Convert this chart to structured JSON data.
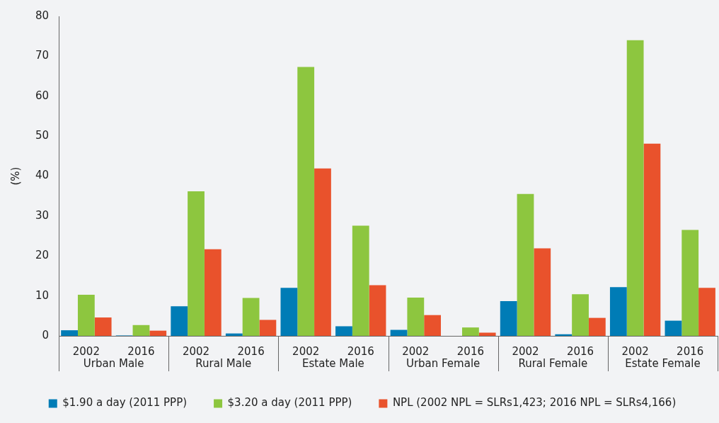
{
  "chart_data": {
    "type": "bar",
    "ylabel": "(%)",
    "categories": [
      "2002",
      "2016",
      "2002",
      "2016",
      "2002",
      "2016",
      "2002",
      "2016",
      "2002",
      "2016",
      "2002",
      "2016"
    ],
    "annotations": [
      "Urban Male",
      "Rural Male",
      "Estate Male",
      "Urban Female",
      "Rural Female",
      "Estate Female"
    ],
    "series": [
      {
        "name": "$1.90 a day (2011 PPP)",
        "color": "#007cb6",
        "values": [
          1.4,
          0.1,
          7.4,
          0.6,
          12.0,
          2.4,
          1.5,
          0,
          8.7,
          0.4,
          12.2,
          3.8
        ]
      },
      {
        "name": "$3.20 a day (2011 PPP)",
        "color": "#8dc63f",
        "values": [
          10.3,
          2.7,
          36.2,
          9.5,
          67.3,
          27.6,
          9.6,
          2.1,
          35.5,
          10.4,
          74.0,
          26.5
        ]
      },
      {
        "name": "NPL (2002 NPL = SLRs1,423; 2016 NPL = SLRs4,166)",
        "color": "#e9522c",
        "values": [
          4.6,
          1.3,
          21.7,
          4.0,
          41.9,
          12.7,
          5.2,
          0.8,
          21.9,
          4.5,
          48.1,
          12.0
        ]
      }
    ],
    "ylim": [
      0,
      80
    ],
    "yticks": [
      0,
      10,
      20,
      30,
      40,
      50,
      60,
      70,
      80
    ],
    "grid": false,
    "legend": "bottom"
  }
}
